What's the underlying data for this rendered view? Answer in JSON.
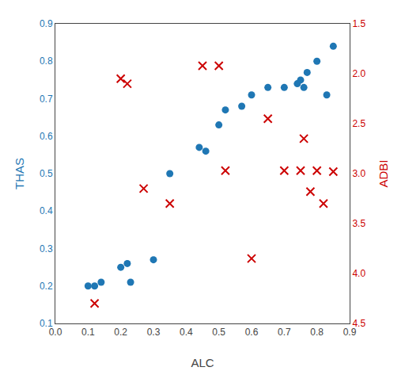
{
  "chart_data": {
    "type": "scatter",
    "xlabel": "ALC",
    "ylabel": "THAS",
    "y2label": "ADBI",
    "series": [
      {
        "color": "#1f77b4",
        "marker": "circle",
        "axis": "y",
        "x": [
          0.1,
          0.12,
          0.14,
          0.2,
          0.22,
          0.23,
          0.3,
          0.35,
          0.44,
          0.46,
          0.5,
          0.52,
          0.57,
          0.6,
          0.65,
          0.7,
          0.74,
          0.75,
          0.76,
          0.77,
          0.8,
          0.83,
          0.85
        ],
        "values": [
          0.2,
          0.2,
          0.21,
          0.25,
          0.26,
          0.21,
          0.27,
          0.5,
          0.57,
          0.56,
          0.63,
          0.67,
          0.68,
          0.71,
          0.73,
          0.73,
          0.74,
          0.75,
          0.73,
          0.77,
          0.8,
          0.71,
          0.84
        ]
      },
      {
        "color": "#cc0000",
        "marker": "x",
        "axis": "y2",
        "x": [
          0.12,
          0.2,
          0.22,
          0.27,
          0.35,
          0.45,
          0.5,
          0.52,
          0.6,
          0.65,
          0.7,
          0.75,
          0.76,
          0.78,
          0.8,
          0.82,
          0.85
        ],
        "values": [
          4.3,
          2.05,
          2.1,
          3.15,
          3.3,
          1.92,
          1.92,
          2.97,
          3.85,
          2.45,
          2.97,
          2.97,
          2.65,
          3.18,
          2.97,
          3.3,
          2.98
        ]
      }
    ],
    "xlim": [
      0.0,
      0.9
    ],
    "xticks": [
      {
        "value": 0.0,
        "label": "0.0"
      },
      0.1,
      0.2,
      0.3,
      0.4,
      0.5,
      0.6,
      0.7,
      0.8,
      0.9
    ],
    "ylim": [
      0.1,
      0.9
    ],
    "yticks": [
      0.1,
      0.2,
      0.3,
      0.4,
      0.5,
      0.6,
      0.7,
      0.8,
      0.9
    ],
    "y2lim": [
      4.5,
      1.5
    ],
    "y2ticks": [
      1.5,
      {
        "value": 2.0,
        "label": "2.0"
      },
      2.5,
      {
        "value": 3.0,
        "label": "3.0"
      },
      3.5,
      {
        "value": 4.0,
        "label": "4.0"
      },
      4.5
    ],
    "grid": false
  }
}
